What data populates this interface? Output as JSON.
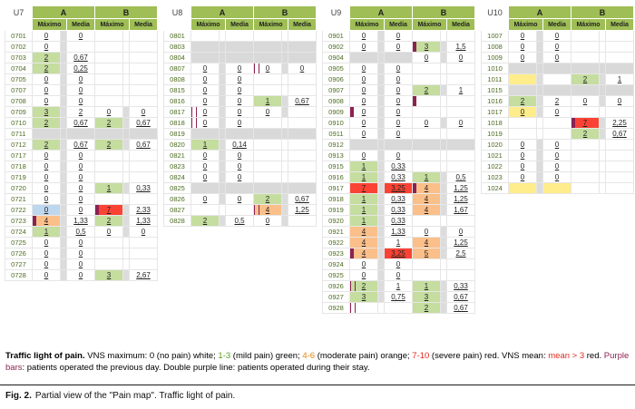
{
  "caption": {
    "label": "Fig. 2.",
    "text": "Partial view of the \"Pain map\". Traffic light of pain."
  },
  "legend": {
    "segments": [
      {
        "text": "Traffic light of pain.",
        "bold": true,
        "color": "#000000"
      },
      {
        "text": " VNS maximum: 0 (no pain) white; ",
        "color": "#000000"
      },
      {
        "text": "1-3",
        "color": "#56a01e"
      },
      {
        "text": " (mild pain) green; ",
        "color": "#000000"
      },
      {
        "text": "4-6",
        "color": "#e8830c"
      },
      {
        "text": " (moderate pain) orange; ",
        "color": "#000000"
      },
      {
        "text": "7-10",
        "color": "#e22a1d"
      },
      {
        "text": " (severe pain) red. VNS mean: ",
        "color": "#000000"
      },
      {
        "text": "mean > 3",
        "color": "#e22a1d"
      },
      {
        "text": " red. ",
        "color": "#000000"
      },
      {
        "text": "Purple bars",
        "color": "#8b2252"
      },
      {
        "text": ": patients operated the previous day. Double purple line: patients operated during their stay.",
        "color": "#000000"
      }
    ]
  },
  "colors": {
    "header": "#9fbe56",
    "g": "#c5dd9f",
    "o": "#fbbf8a",
    "r": "#fa4334",
    "y": "#ffec8a",
    "b": "#bdd7ee",
    "gy": "#d9d9d9",
    "ab": "#d9d9d9",
    "st": "#dcdcdc",
    "purple": "#8b2252"
  },
  "header": {
    "groups": [
      "A",
      "B"
    ],
    "sub": [
      "Máximo",
      "Media",
      "Máximo",
      "Media"
    ]
  },
  "panels": [
    {
      "unit": "U7",
      "rows": [
        {
          "id": "0701",
          "c": [
            "0",
            "0",
            "",
            ""
          ]
        },
        {
          "id": "0702",
          "c": [
            "0",
            "",
            "",
            ""
          ]
        },
        {
          "id": "0703",
          "c": [
            "2",
            "0,67",
            "",
            ""
          ]
        },
        {
          "id": "0704",
          "c": [
            "2",
            "0,25",
            "",
            ""
          ]
        },
        {
          "id": "0705",
          "c": [
            "0",
            "0",
            "",
            ""
          ]
        },
        {
          "id": "0707",
          "c": [
            "0",
            "0",
            "",
            ""
          ]
        },
        {
          "id": "0708",
          "c": [
            "0",
            "0",
            "",
            ""
          ]
        },
        {
          "id": "0709",
          "c": [
            "3",
            "2",
            "0",
            "0"
          ]
        },
        {
          "id": "0710",
          "c": [
            "2",
            "0,67",
            "2",
            "0,67"
          ]
        },
        {
          "id": "0711",
          "c": [
            "",
            "",
            "",
            ""
          ],
          "absent": true
        },
        {
          "id": "0712",
          "c": [
            "2",
            "0,67",
            "2",
            "0,67"
          ]
        },
        {
          "id": "0717",
          "c": [
            "0",
            "0",
            "",
            ""
          ]
        },
        {
          "id": "0718",
          "c": [
            "0",
            "0",
            "",
            ""
          ]
        },
        {
          "id": "0719",
          "c": [
            "0",
            "0",
            "",
            ""
          ]
        },
        {
          "id": "0720",
          "c": [
            "0",
            "0",
            "1",
            "0,33"
          ]
        },
        {
          "id": "0721",
          "c": [
            "0",
            "0",
            "",
            ""
          ]
        },
        {
          "id": "0722",
          "c": [
            "0",
            "0",
            "7",
            "2,33"
          ],
          "cc": {
            "0": "b"
          },
          "mb": "bar"
        },
        {
          "id": "0723",
          "c": [
            "4",
            "1,33",
            "2",
            "1,33"
          ],
          "ma": "bar"
        },
        {
          "id": "0724",
          "c": [
            "1",
            "0,5",
            "0",
            "0"
          ]
        },
        {
          "id": "0725",
          "c": [
            "0",
            "0",
            "",
            ""
          ]
        },
        {
          "id": "0726",
          "c": [
            "0",
            "0",
            "",
            ""
          ]
        },
        {
          "id": "0727",
          "c": [
            "0",
            "0",
            "",
            ""
          ]
        },
        {
          "id": "0728",
          "c": [
            "0",
            "0",
            "3",
            "2,67"
          ]
        }
      ]
    },
    {
      "unit": "U8",
      "rows": [
        {
          "id": "0801",
          "c": [
            "",
            "",
            "",
            ""
          ]
        },
        {
          "id": "0803",
          "c": [
            "",
            "",
            "",
            ""
          ],
          "absent": true
        },
        {
          "id": "0804",
          "c": [
            "",
            "",
            "",
            ""
          ],
          "absent": true
        },
        {
          "id": "0807",
          "c": [
            "0",
            "0",
            "0",
            "0"
          ],
          "mb": "double"
        },
        {
          "id": "0808",
          "c": [
            "0",
            "0",
            "",
            ""
          ]
        },
        {
          "id": "0815",
          "c": [
            "0",
            "0",
            "",
            ""
          ]
        },
        {
          "id": "0816",
          "c": [
            "0",
            "0",
            "1",
            "0,67"
          ]
        },
        {
          "id": "0817",
          "c": [
            "0",
            "0",
            "0",
            ""
          ],
          "ma": "double"
        },
        {
          "id": "0818",
          "c": [
            "0",
            "0",
            "",
            ""
          ],
          "ma": "double"
        },
        {
          "id": "0819",
          "c": [
            "",
            "",
            "",
            ""
          ],
          "absent": true
        },
        {
          "id": "0820",
          "c": [
            "1",
            "0,14",
            "",
            ""
          ]
        },
        {
          "id": "0821",
          "c": [
            "0",
            "0",
            "",
            ""
          ]
        },
        {
          "id": "0823",
          "c": [
            "0",
            "0",
            "",
            ""
          ]
        },
        {
          "id": "0824",
          "c": [
            "0",
            "0",
            "",
            ""
          ]
        },
        {
          "id": "0825",
          "c": [
            "",
            "",
            "",
            ""
          ],
          "absent": true
        },
        {
          "id": "0826",
          "c": [
            "0",
            "0",
            "2",
            "0,67"
          ]
        },
        {
          "id": "0827",
          "c": [
            "",
            "",
            "4",
            "1,25"
          ],
          "mb": "double"
        },
        {
          "id": "0828",
          "c": [
            "2",
            "0,5",
            "0",
            ""
          ]
        }
      ]
    },
    {
      "unit": "U9",
      "rows": [
        {
          "id": "0901",
          "c": [
            "0",
            "0",
            "",
            ""
          ]
        },
        {
          "id": "0902",
          "c": [
            "0",
            "0",
            "3",
            "1,5"
          ],
          "mb": "bar"
        },
        {
          "id": "0904",
          "c": [
            "",
            "",
            "0",
            "0"
          ],
          "cc": {
            "0": "gy",
            "1": "gy"
          }
        },
        {
          "id": "0905",
          "c": [
            "0",
            "0",
            "",
            ""
          ]
        },
        {
          "id": "0906",
          "c": [
            "0",
            "0",
            "",
            ""
          ]
        },
        {
          "id": "0907",
          "c": [
            "0",
            "0",
            "2",
            "1"
          ]
        },
        {
          "id": "0908",
          "c": [
            "0",
            "0",
            "",
            ""
          ],
          "mb": "bar"
        },
        {
          "id": "0909",
          "c": [
            "0",
            "0",
            "",
            ""
          ],
          "ma": "bar"
        },
        {
          "id": "0910",
          "c": [
            "0",
            "0",
            "0",
            "0"
          ]
        },
        {
          "id": "0911",
          "c": [
            "0",
            "0",
            "",
            ""
          ]
        },
        {
          "id": "0912",
          "c": [
            "",
            "",
            "",
            ""
          ],
          "absent": true
        },
        {
          "id": "0913",
          "c": [
            "0",
            "0",
            "",
            ""
          ]
        },
        {
          "id": "0915",
          "c": [
            "1",
            "0,33",
            "",
            ""
          ]
        },
        {
          "id": "0916",
          "c": [
            "1",
            "0,33",
            "1",
            "0,5"
          ]
        },
        {
          "id": "0917",
          "c": [
            "7",
            "3,25",
            "4",
            "1,25"
          ],
          "mb": "bar"
        },
        {
          "id": "0918",
          "c": [
            "1",
            "0,33",
            "4",
            "1,25"
          ]
        },
        {
          "id": "0919",
          "c": [
            "1",
            "0,33",
            "4",
            "1,67"
          ]
        },
        {
          "id": "0920",
          "c": [
            "1",
            "0,33",
            "",
            ""
          ]
        },
        {
          "id": "0921",
          "c": [
            "4",
            "1,33",
            "0",
            "0"
          ]
        },
        {
          "id": "0922",
          "c": [
            "4",
            "1",
            "4",
            "1,25"
          ]
        },
        {
          "id": "0923",
          "c": [
            "4",
            "3,25",
            "5",
            "2,5"
          ],
          "ma": "bar"
        },
        {
          "id": "0924",
          "c": [
            "0",
            "0",
            "",
            ""
          ]
        },
        {
          "id": "0925",
          "c": [
            "0",
            "0",
            "",
            ""
          ]
        },
        {
          "id": "0926",
          "c": [
            "2",
            "1",
            "1",
            "0,33"
          ],
          "ma": "double"
        },
        {
          "id": "0927",
          "c": [
            "3",
            "0,75",
            "3",
            "0,67"
          ]
        },
        {
          "id": "0928",
          "c": [
            "",
            "",
            "2",
            "0,67"
          ],
          "ma": "double"
        }
      ]
    },
    {
      "unit": "U10",
      "rows": [
        {
          "id": "1007",
          "c": [
            "0",
            "0",
            "",
            ""
          ]
        },
        {
          "id": "1008",
          "c": [
            "0",
            "0",
            "",
            ""
          ]
        },
        {
          "id": "1009",
          "c": [
            "0",
            "0",
            "",
            ""
          ]
        },
        {
          "id": "1010",
          "c": [
            "",
            "",
            "",
            ""
          ],
          "absent": true
        },
        {
          "id": "1011",
          "c": [
            "",
            "",
            "2",
            "1"
          ],
          "cc": {
            "0": "y"
          }
        },
        {
          "id": "1015",
          "c": [
            "",
            "",
            "",
            ""
          ],
          "absent": true
        },
        {
          "id": "1016",
          "c": [
            "2",
            "2",
            "0",
            "0"
          ]
        },
        {
          "id": "1017",
          "c": [
            "0",
            "0",
            "",
            ""
          ],
          "cc": {
            "0": "y"
          }
        },
        {
          "id": "1018",
          "c": [
            "",
            "",
            "7",
            "2,25"
          ],
          "mb": "bar"
        },
        {
          "id": "1019",
          "c": [
            "",
            "",
            "2",
            "0,67"
          ]
        },
        {
          "id": "1020",
          "c": [
            "0",
            "0",
            "",
            ""
          ]
        },
        {
          "id": "1021",
          "c": [
            "0",
            "0",
            "",
            ""
          ]
        },
        {
          "id": "1022",
          "c": [
            "0",
            "0",
            "",
            ""
          ]
        },
        {
          "id": "1023",
          "c": [
            "0",
            "0",
            "",
            ""
          ]
        },
        {
          "id": "1024",
          "c": [
            "",
            "",
            "",
            ""
          ],
          "cc": {
            "0": "y",
            "1": "y"
          }
        }
      ]
    }
  ]
}
